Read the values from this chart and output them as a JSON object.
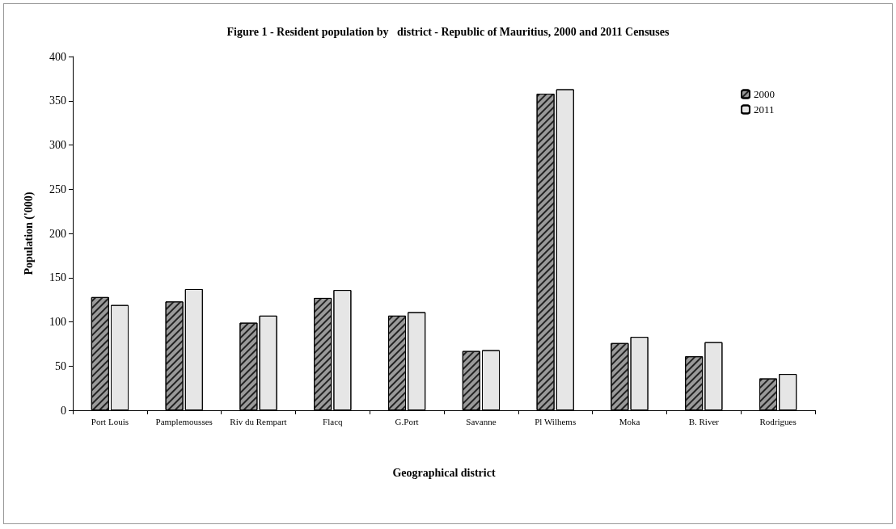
{
  "chart_data": {
    "type": "bar",
    "title": "Figure 1 - Resident population by   district - Republic of Mauritius, 2000 and 2011 Censuses",
    "xlabel": "Geographical district",
    "ylabel": "Population ('000)",
    "categories": [
      "Port Louis",
      "Pamplemousses",
      "Riv du Rempart",
      "Flacq",
      "G.Port",
      "Savanne",
      "Pl Wilhems",
      "Moka",
      "B. River",
      "Rodrigues"
    ],
    "series": [
      {
        "name": "2000",
        "color": "#9a9a9a",
        "values": [
          128,
          123,
          99,
          127,
          107,
          67,
          358,
          76,
          61,
          36
        ]
      },
      {
        "name": "2011",
        "color": "#e6e6e6",
        "values": [
          119,
          137,
          107,
          136,
          111,
          68,
          363,
          83,
          77,
          41
        ]
      }
    ],
    "ylim": [
      0,
      400
    ],
    "yticks": [
      0,
      50,
      100,
      150,
      200,
      250,
      300,
      350,
      400
    ],
    "grid": false,
    "legend": "top right"
  }
}
